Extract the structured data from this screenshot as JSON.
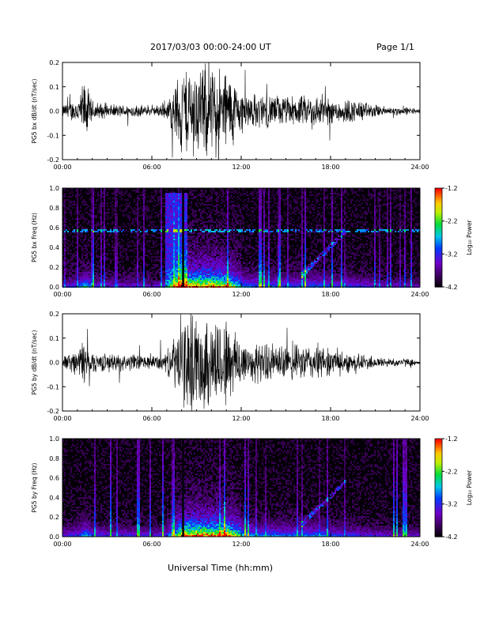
{
  "header": {
    "title": "2017/03/03  00:00-24:00 UT",
    "page": "Page 1/1"
  },
  "xlabel": "Universal Time (hh:mm)",
  "colorbar": {
    "label": "Log₁₀ Power",
    "ticks": [
      "-1.2",
      "-2.2",
      "-3.2",
      "-4.2"
    ],
    "range": [
      -4.2,
      -1.2
    ]
  },
  "chart_data": [
    {
      "type": "line",
      "ylabel": "PG5 bx dB/dt (nT/sec)",
      "xlim_hours": [
        0,
        24
      ],
      "ylim": [
        -0.2,
        0.2
      ],
      "x_ticks": [
        "00:00",
        "06:00",
        "12:00",
        "18:00",
        "24:00"
      ],
      "y_ticks": [
        "0.2",
        "0.1",
        "0.0",
        "-0.1",
        "-0.2"
      ],
      "activity_profile": {
        "hours": [
          0,
          1,
          1.5,
          2,
          3,
          4,
          5,
          6,
          7,
          7.5,
          8,
          9,
          10,
          11,
          12,
          13,
          14,
          15,
          16,
          17,
          18,
          19,
          20,
          21,
          22,
          23,
          24
        ],
        "amplitude": [
          0.03,
          0.06,
          0.15,
          0.05,
          0.03,
          0.03,
          0.03,
          0.02,
          0.04,
          0.12,
          0.22,
          0.22,
          0.22,
          0.2,
          0.1,
          0.08,
          0.08,
          0.07,
          0.07,
          0.08,
          0.06,
          0.06,
          0.05,
          0.03,
          0.02,
          0.02,
          0.01
        ]
      }
    },
    {
      "type": "heatmap",
      "ylabel": "PG5 bx Freq (Hz)",
      "xlim_hours": [
        0,
        24
      ],
      "ylim": [
        0.0,
        1.0
      ],
      "x_ticks": [
        "00:00",
        "06:00",
        "12:00",
        "18:00",
        "24:00"
      ],
      "y_ticks": [
        "1.0",
        "0.8",
        "0.6",
        "0.4",
        "0.2",
        "0.0"
      ],
      "zlim": [
        -4.2,
        -1.2
      ]
    },
    {
      "type": "line",
      "ylabel": "PG5 by dB/dt (nT/sec)",
      "xlim_hours": [
        0,
        24
      ],
      "ylim": [
        -0.2,
        0.2
      ],
      "x_ticks": [
        "00:00",
        "06:00",
        "12:00",
        "18:00",
        "24:00"
      ],
      "y_ticks": [
        "0.2",
        "0.1",
        "0.0",
        "-0.1",
        "-0.2"
      ],
      "activity_profile": {
        "hours": [
          0,
          1,
          1.5,
          2,
          3,
          4,
          5,
          6,
          7,
          7.5,
          8,
          9,
          10,
          11,
          12,
          13,
          14,
          15,
          16,
          17,
          18,
          19,
          20,
          21,
          22,
          23,
          24
        ],
        "amplitude": [
          0.03,
          0.06,
          0.12,
          0.05,
          0.04,
          0.04,
          0.04,
          0.03,
          0.05,
          0.12,
          0.22,
          0.22,
          0.22,
          0.22,
          0.12,
          0.09,
          0.09,
          0.08,
          0.08,
          0.09,
          0.06,
          0.05,
          0.04,
          0.03,
          0.02,
          0.02,
          0.01
        ]
      }
    },
    {
      "type": "heatmap",
      "ylabel": "PG5 by Freq (Hz)",
      "xlim_hours": [
        0,
        24
      ],
      "ylim": [
        0.0,
        1.0
      ],
      "x_ticks": [
        "00:00",
        "06:00",
        "12:00",
        "18:00",
        "24:00"
      ],
      "y_ticks": [
        "1.0",
        "0.8",
        "0.6",
        "0.4",
        "0.2",
        "0.0"
      ],
      "zlim": [
        -4.2,
        -1.2
      ]
    }
  ]
}
